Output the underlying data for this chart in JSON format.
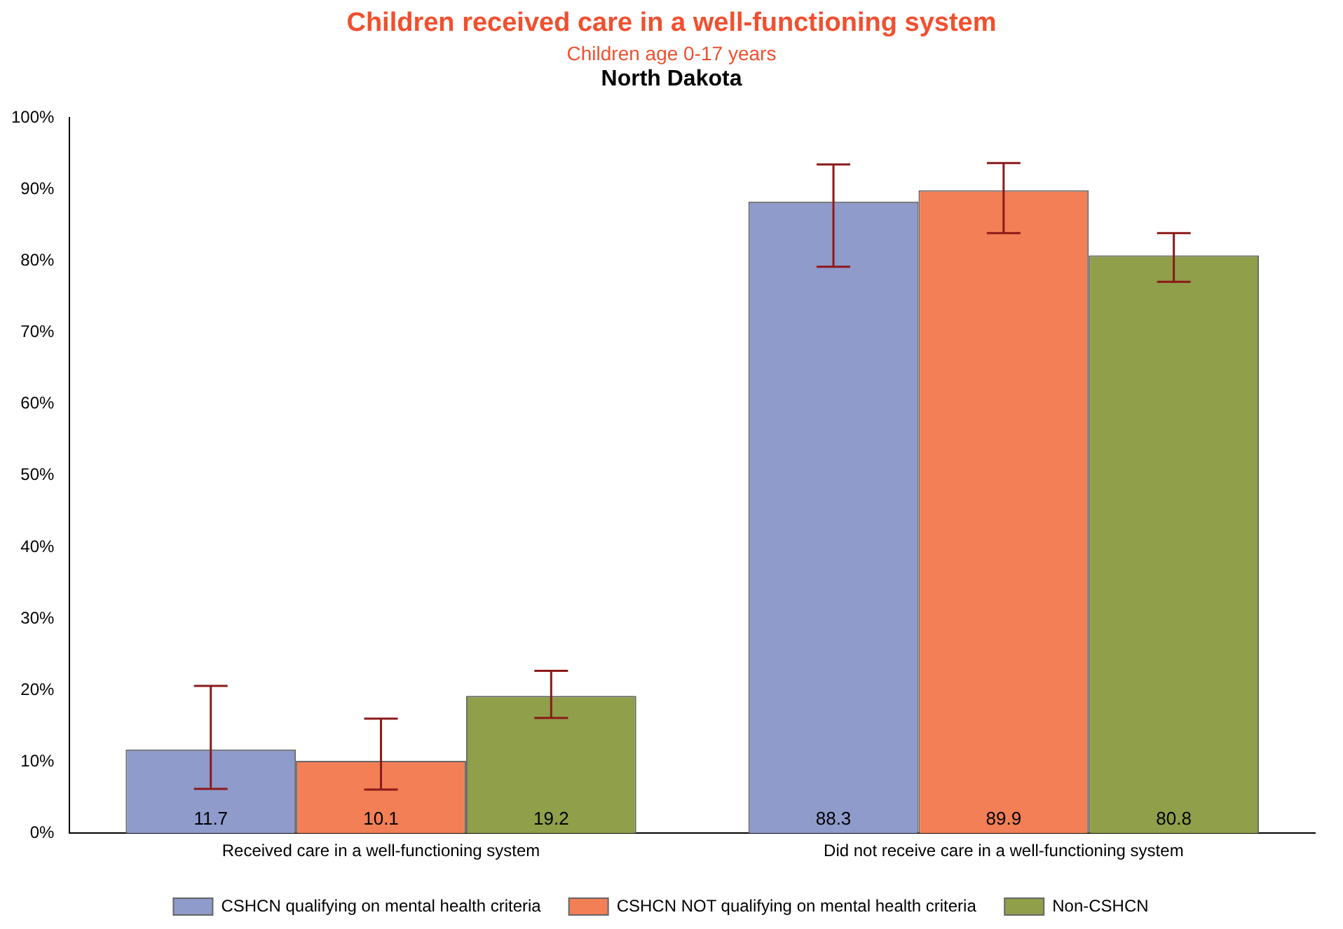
{
  "chart_data": {
    "type": "bar",
    "title": "Children received care in a well-functioning system",
    "subtitle": "Children age 0-17 years",
    "annotations": [
      "North Dakota"
    ],
    "categories": [
      "Received care in a well-functioning system",
      "Did not receive care in a well-functioning system"
    ],
    "series": [
      {
        "name": "CSHCN qualifying on mental health criteria",
        "color": "#8f9bcb",
        "values": [
          11.7,
          88.3
        ],
        "errors": [
          [
            6.2,
            20.6
          ],
          [
            79.2,
            93.5
          ]
        ]
      },
      {
        "name": "CSHCN NOT qualifying on mental health criteria",
        "color": "#f27f55",
        "values": [
          10.1,
          89.9
        ],
        "errors": [
          [
            6.1,
            16.0
          ],
          [
            83.9,
            93.7
          ]
        ]
      },
      {
        "name": "Non-CSHCN",
        "color": "#8f9f4a",
        "values": [
          19.2,
          80.8
        ],
        "errors": [
          [
            16.1,
            22.7
          ],
          [
            77.1,
            83.9
          ]
        ]
      }
    ],
    "ylim": [
      0,
      100
    ],
    "yticks": [
      {
        "value": 0,
        "label": "0%"
      },
      {
        "value": 10,
        "label": "10%"
      },
      {
        "value": 20,
        "label": "20%"
      },
      {
        "value": 30,
        "label": "30%"
      },
      {
        "value": 40,
        "label": "40%"
      },
      {
        "value": 50,
        "label": "50%"
      },
      {
        "value": 60,
        "label": "60%"
      },
      {
        "value": 70,
        "label": "70%"
      },
      {
        "value": 80,
        "label": "80%"
      },
      {
        "value": 90,
        "label": "90%"
      },
      {
        "value": 100,
        "label": "100%"
      }
    ],
    "grid": false,
    "legend": "bottom",
    "data_labels": true
  }
}
